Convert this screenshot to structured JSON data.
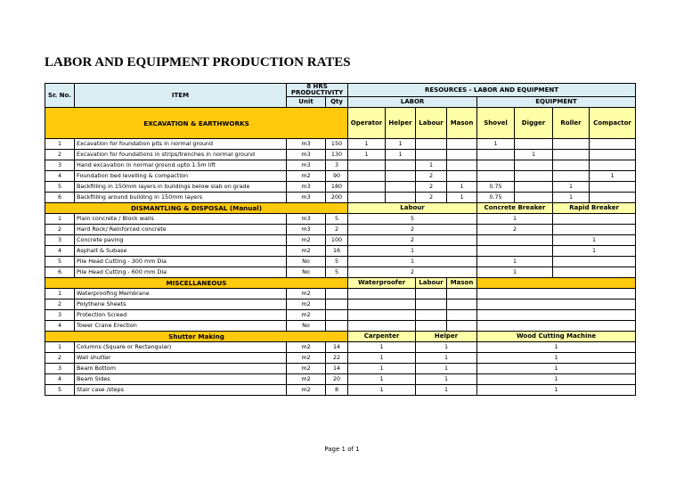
{
  "title": "LABOR AND EQUIPMENT PRODUCTION RATES",
  "header": {
    "sr_no": "Sr. No.",
    "item": "ITEM",
    "productivity": "8 HRS PRODUCTIVITY",
    "unit": "Unit",
    "qty": "Qty",
    "resources": "RESOURCES - LABOR AND EQUIPMENT",
    "labor": "LABOR",
    "equipment": "EQUIPMENT"
  },
  "sections": [
    {
      "title": "EXCAVATION & EARTHWORKS",
      "columns": [
        "Operator",
        "Helper",
        "Labour",
        "Mason",
        "Shovel",
        "Digger",
        "Roller",
        "Compactor"
      ],
      "rows": [
        [
          1,
          "Excavation for foundation pits in normal ground",
          "m3",
          150,
          1,
          1,
          null,
          null,
          1,
          null,
          null,
          null
        ],
        [
          2,
          "Excavation for foundations in strips/trenches in normal ground",
          "m3",
          130,
          1,
          1,
          null,
          null,
          null,
          1,
          null,
          null
        ],
        [
          3,
          "Hand excavation in normal ground upto 1.5m lift",
          "m3",
          3,
          null,
          null,
          1,
          null,
          null,
          null,
          null,
          null
        ],
        [
          4,
          "Foundation bed levelling & compaction",
          "m2",
          90,
          null,
          null,
          2,
          null,
          null,
          null,
          null,
          1
        ],
        [
          5,
          "Backfilling in 150mm layers in buildings below slab on grade",
          "m3",
          180,
          null,
          null,
          2,
          1,
          0.75,
          null,
          1,
          null
        ],
        [
          6,
          "Backfilling around building in 150mm layers",
          "m3",
          200,
          null,
          null,
          2,
          1,
          0.75,
          null,
          1,
          null
        ]
      ]
    },
    {
      "title": "DISMANTLING & DISPOSAL (Manual)",
      "columns": [
        "Labour",
        "Concrete Breaker",
        "Rapid Breaker"
      ],
      "rows": [
        [
          1,
          "Plain concrete / Block walls",
          "m3",
          5,
          5,
          1,
          null
        ],
        [
          2,
          "Hard Rock/ Reinforced concrete",
          "m3",
          2,
          2,
          2,
          null
        ],
        [
          3,
          "Concrete paving",
          "m2",
          100,
          2,
          null,
          1
        ],
        [
          4,
          "Asphalt & Subase",
          "m2",
          16,
          1,
          null,
          1
        ],
        [
          5,
          "Pile Head Cutting - 300 mm Dia",
          "No",
          5,
          1,
          1,
          null
        ],
        [
          6,
          "Pile Head Cutting - 600 mm Dia",
          "No",
          5,
          2,
          1,
          null
        ]
      ]
    },
    {
      "title": "MISCELLANEOUS",
      "columns": [
        "Waterproofer",
        "Labour",
        "Mason"
      ],
      "rows": [
        [
          1,
          "Waterproofing Membrane",
          "m2",
          null
        ],
        [
          2,
          "Polythene Sheets",
          "m2",
          null
        ],
        [
          3,
          "Protection Screed",
          "m2",
          null
        ],
        [
          4,
          "Tower Crane Erection",
          "No",
          null
        ]
      ]
    },
    {
      "title": "Shutter Making",
      "columns": [
        "Carpenter",
        "Helper",
        "Wood Cutting Machine"
      ],
      "rows": [
        [
          1,
          "Columns (Square or Rectangular)",
          "m2",
          14,
          1,
          1,
          1
        ],
        [
          2,
          "Wall shutter",
          "m2",
          22,
          1,
          1,
          1
        ],
        [
          3,
          "Beam Bottom",
          "m2",
          14,
          1,
          1,
          1
        ],
        [
          4,
          "Beam Sides",
          "m2",
          20,
          1,
          1,
          1
        ],
        [
          5,
          "Stair case /steps",
          "m2",
          8,
          1,
          1,
          1
        ]
      ]
    }
  ],
  "footer": "Page 1 of 1"
}
